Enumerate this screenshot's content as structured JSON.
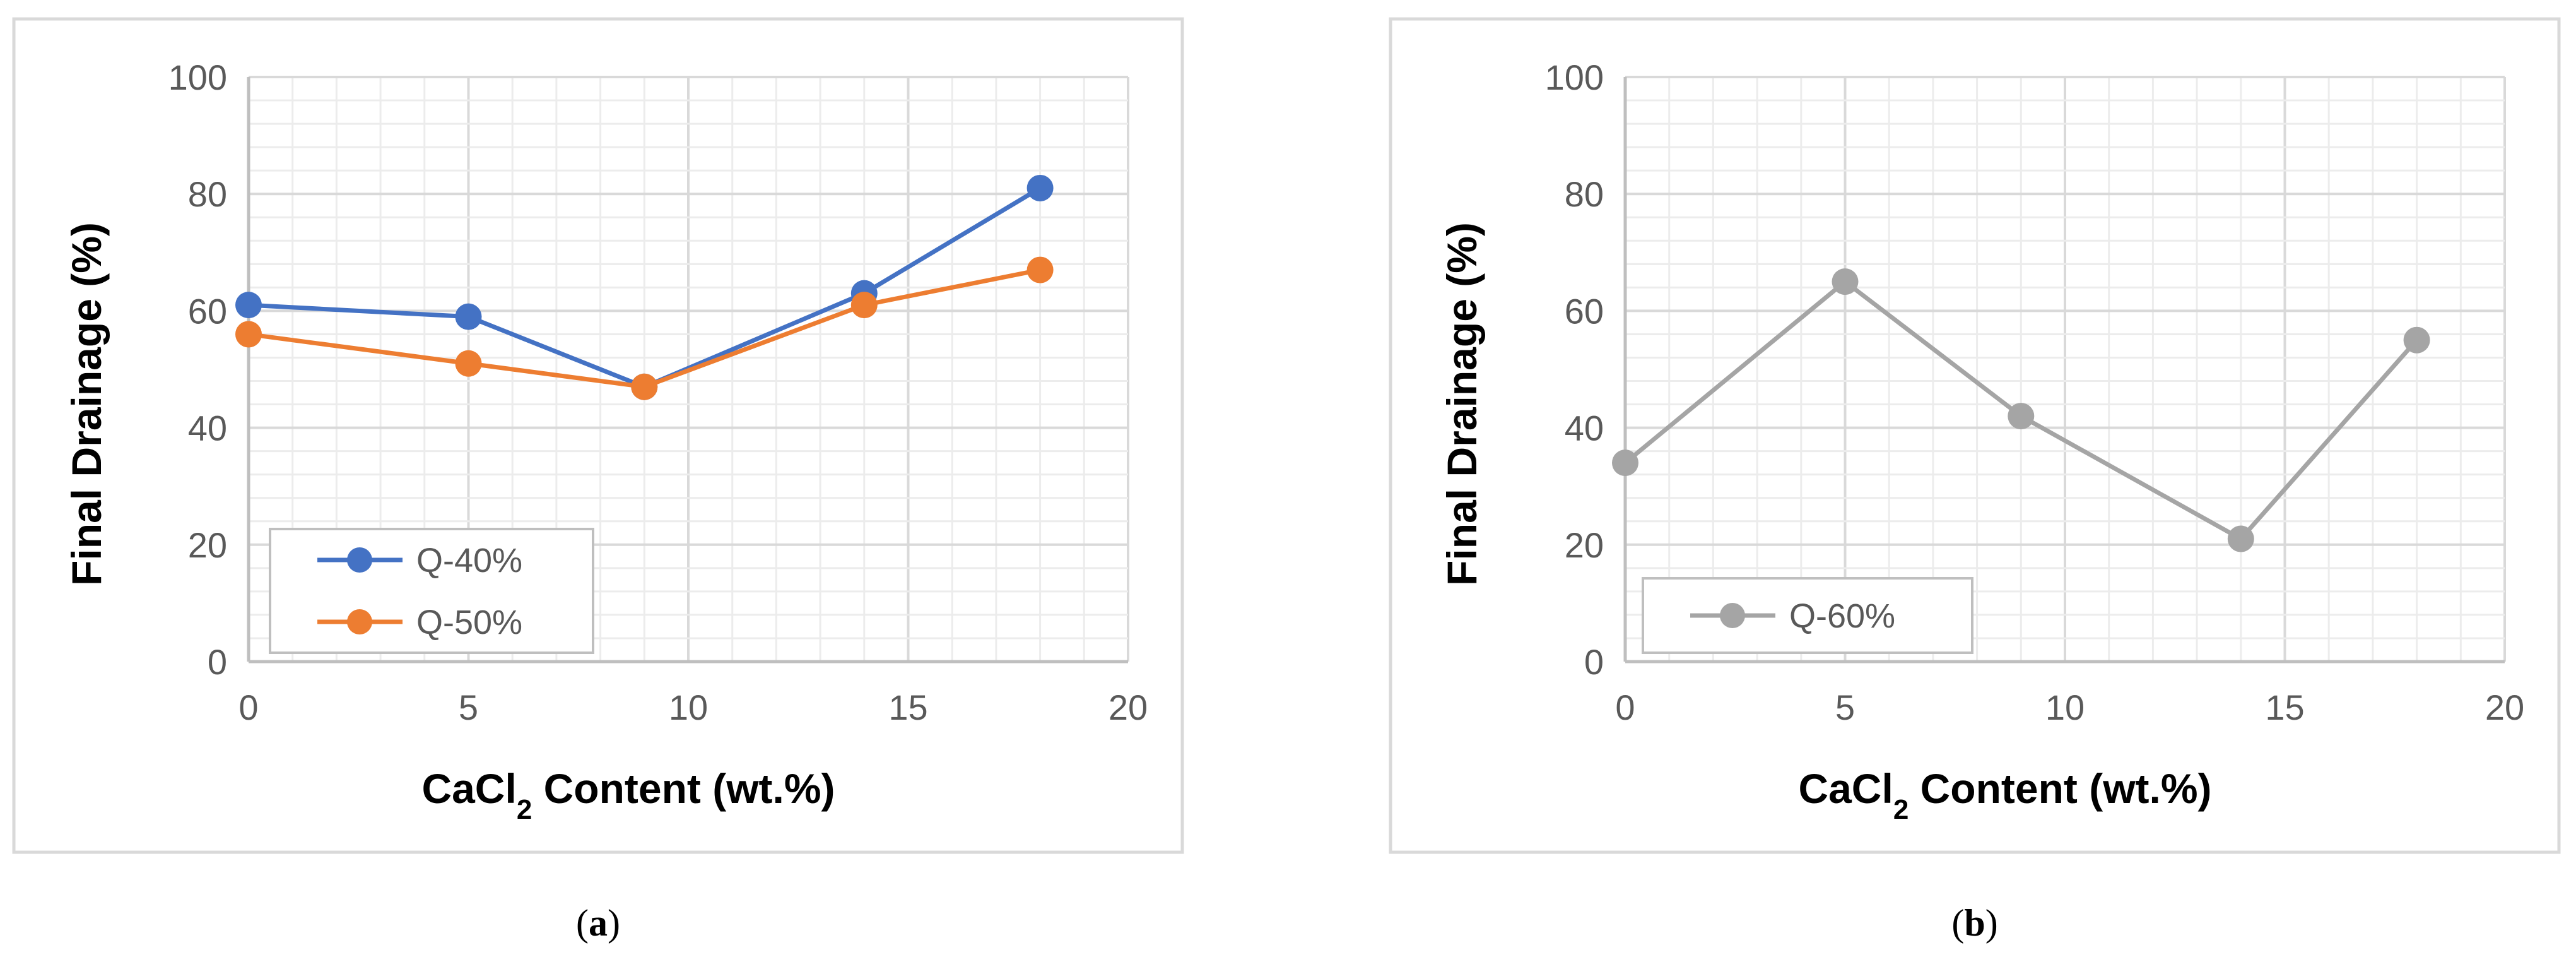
{
  "chart_data": [
    {
      "type": "line",
      "panel_label": "a",
      "xlabel_main": "CaCl",
      "xlabel_subscript": "2",
      "xlabel_tail": " Content (wt.%)",
      "ylabel": "Final Drainage (%)",
      "xlim": [
        0,
        20
      ],
      "ylim": [
        0,
        100
      ],
      "xticks": [
        0,
        5,
        10,
        15,
        20
      ],
      "yticks": [
        0,
        20,
        40,
        60,
        80,
        100
      ],
      "grid": true,
      "legend_position": "bottom-left",
      "series": [
        {
          "name": "Q-40%",
          "color": "#4472c4",
          "x": [
            0,
            5,
            9,
            14,
            18
          ],
          "y": [
            61,
            59,
            47,
            63,
            81
          ]
        },
        {
          "name": "Q-50%",
          "color": "#ed7d31",
          "x": [
            0,
            5,
            9,
            14,
            18
          ],
          "y": [
            56,
            51,
            47,
            61,
            67
          ]
        }
      ]
    },
    {
      "type": "line",
      "panel_label": "b",
      "xlabel_main": "CaCl",
      "xlabel_subscript": "2",
      "xlabel_tail": " Content (wt.%)",
      "ylabel": "Final Drainage (%)",
      "xlim": [
        0,
        20
      ],
      "ylim": [
        0,
        100
      ],
      "xticks": [
        0,
        5,
        10,
        15,
        20
      ],
      "yticks": [
        0,
        20,
        40,
        60,
        80,
        100
      ],
      "grid": true,
      "legend_position": "bottom-left",
      "series": [
        {
          "name": "Q-60%",
          "color": "#a5a5a5",
          "x": [
            0,
            5,
            9,
            14,
            18
          ],
          "y": [
            34,
            65,
            42,
            21,
            55
          ]
        }
      ]
    }
  ]
}
